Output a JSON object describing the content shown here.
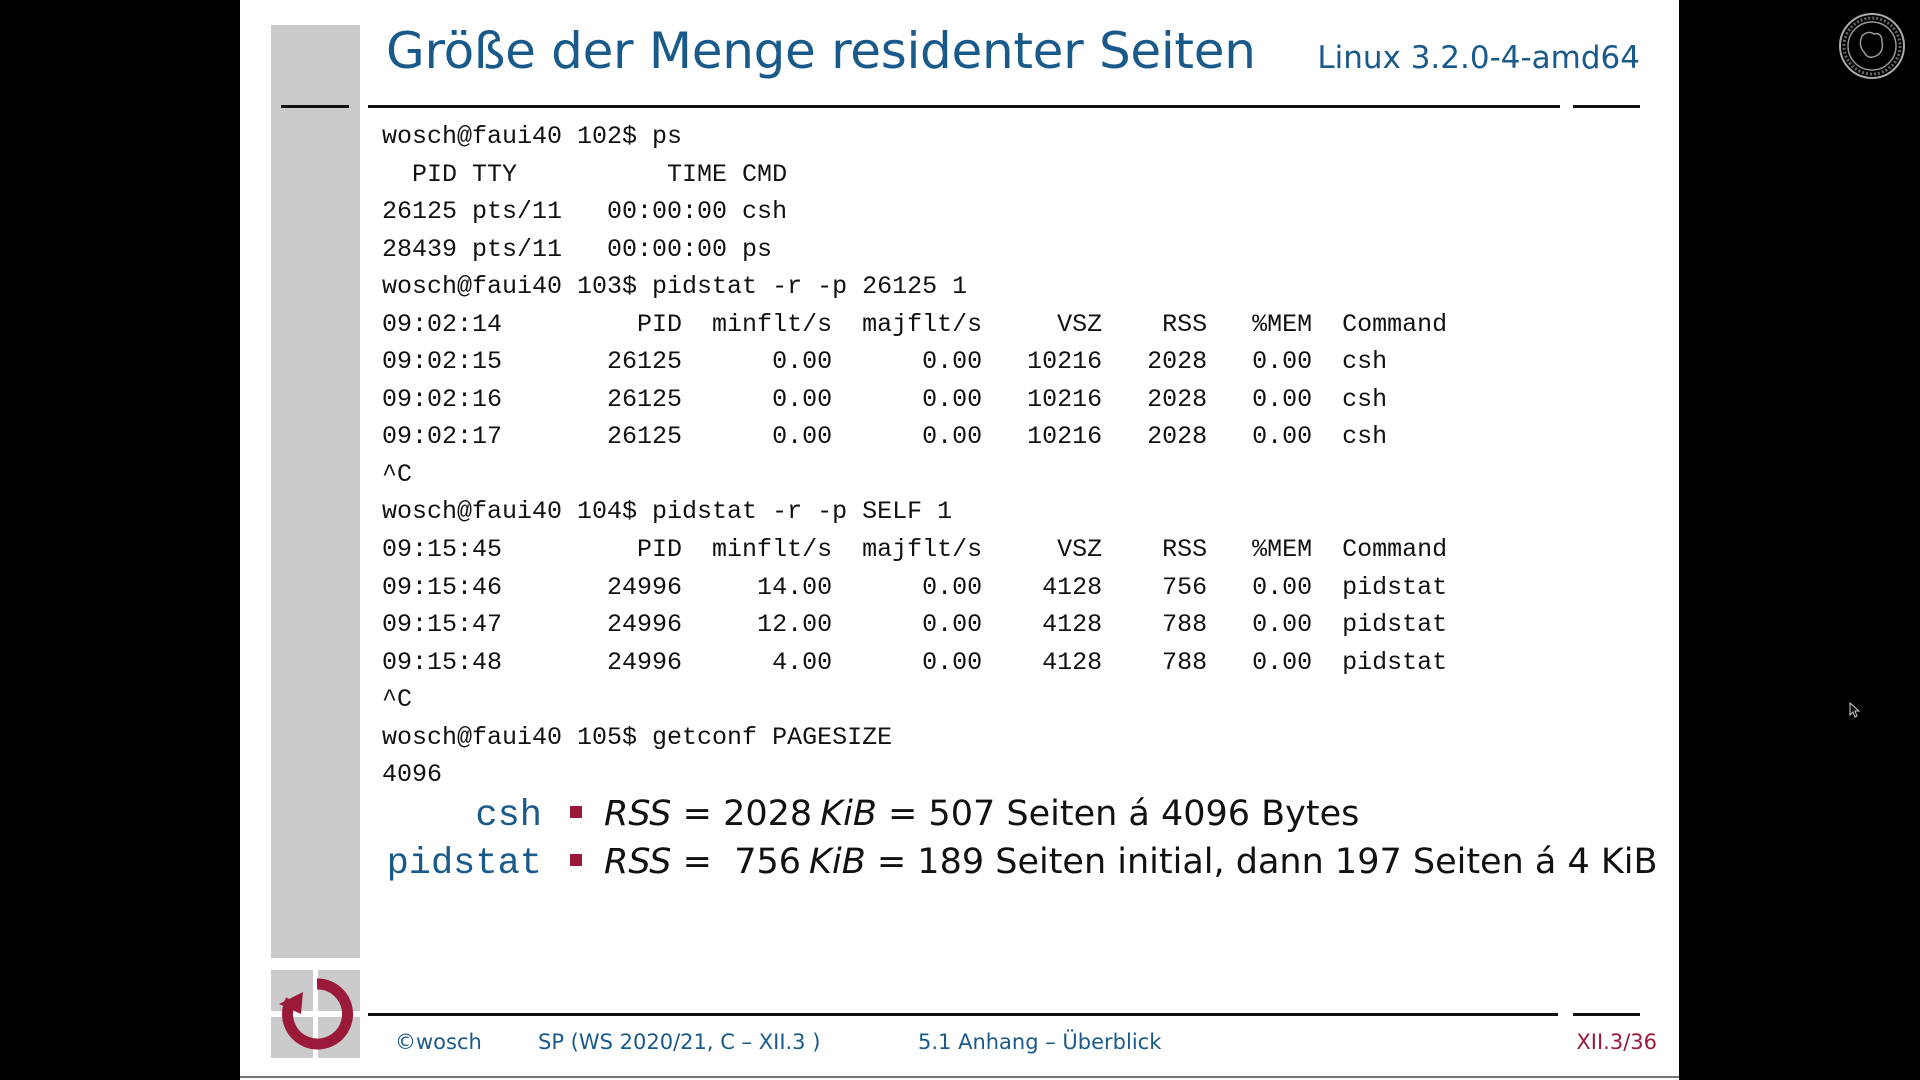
{
  "slide": {
    "title": "Größe der Menge residenter Seiten",
    "subtitle": "Linux 3.2.0-4-amd64",
    "terminal_lines": [
      "wosch@faui40 102$ ps",
      "  PID TTY          TIME CMD",
      "26125 pts/11   00:00:00 csh",
      "28439 pts/11   00:00:00 ps",
      "wosch@faui40 103$ pidstat -r -p 26125 1",
      "09:02:14         PID  minflt/s  majflt/s     VSZ    RSS   %MEM  Command",
      "09:02:15       26125      0.00      0.00   10216   2028   0.00  csh",
      "09:02:16       26125      0.00      0.00   10216   2028   0.00  csh",
      "09:02:17       26125      0.00      0.00   10216   2028   0.00  csh",
      "^C",
      "wosch@faui40 104$ pidstat -r -p SELF 1",
      "09:15:45         PID  minflt/s  majflt/s     VSZ    RSS   %MEM  Command",
      "09:15:46       24996     14.00      0.00    4128    756   0.00  pidstat",
      "09:15:47       24996     12.00      0.00    4128    788   0.00  pidstat",
      "09:15:48       24996      4.00      0.00    4128    788   0.00  pidstat",
      "^C",
      "wosch@faui40 105$ getconf PAGESIZE",
      "4096"
    ],
    "summary": [
      {
        "label": "csh",
        "rss_var": "RSS",
        "eq1": " = ",
        "value": "2028",
        "unit": "KiB",
        "rest": " = 507 Seiten á 4096 Bytes"
      },
      {
        "label": "pidstat",
        "rss_var": "RSS",
        "eq1": " =  ",
        "value": "756",
        "unit": "KiB",
        "rest": " = 189 Seiten initial, dann 197 Seiten á 4 KiB"
      }
    ]
  },
  "footer": {
    "copyright": "©wosch",
    "course": "SP (WS 2020/21, C – XII.3 )",
    "section": "5.1 Anhang – Überblick",
    "page": "XII.3/36"
  },
  "colors": {
    "title": "#1a5a8a",
    "accent": "#9b1a3a",
    "sidebar_gray": "#cbcbcb",
    "background": "#000000"
  },
  "icons": {
    "logo": "circular-arrow-logo-icon",
    "seal": "university-seal-icon",
    "cursor": "mouse-cursor-icon"
  }
}
